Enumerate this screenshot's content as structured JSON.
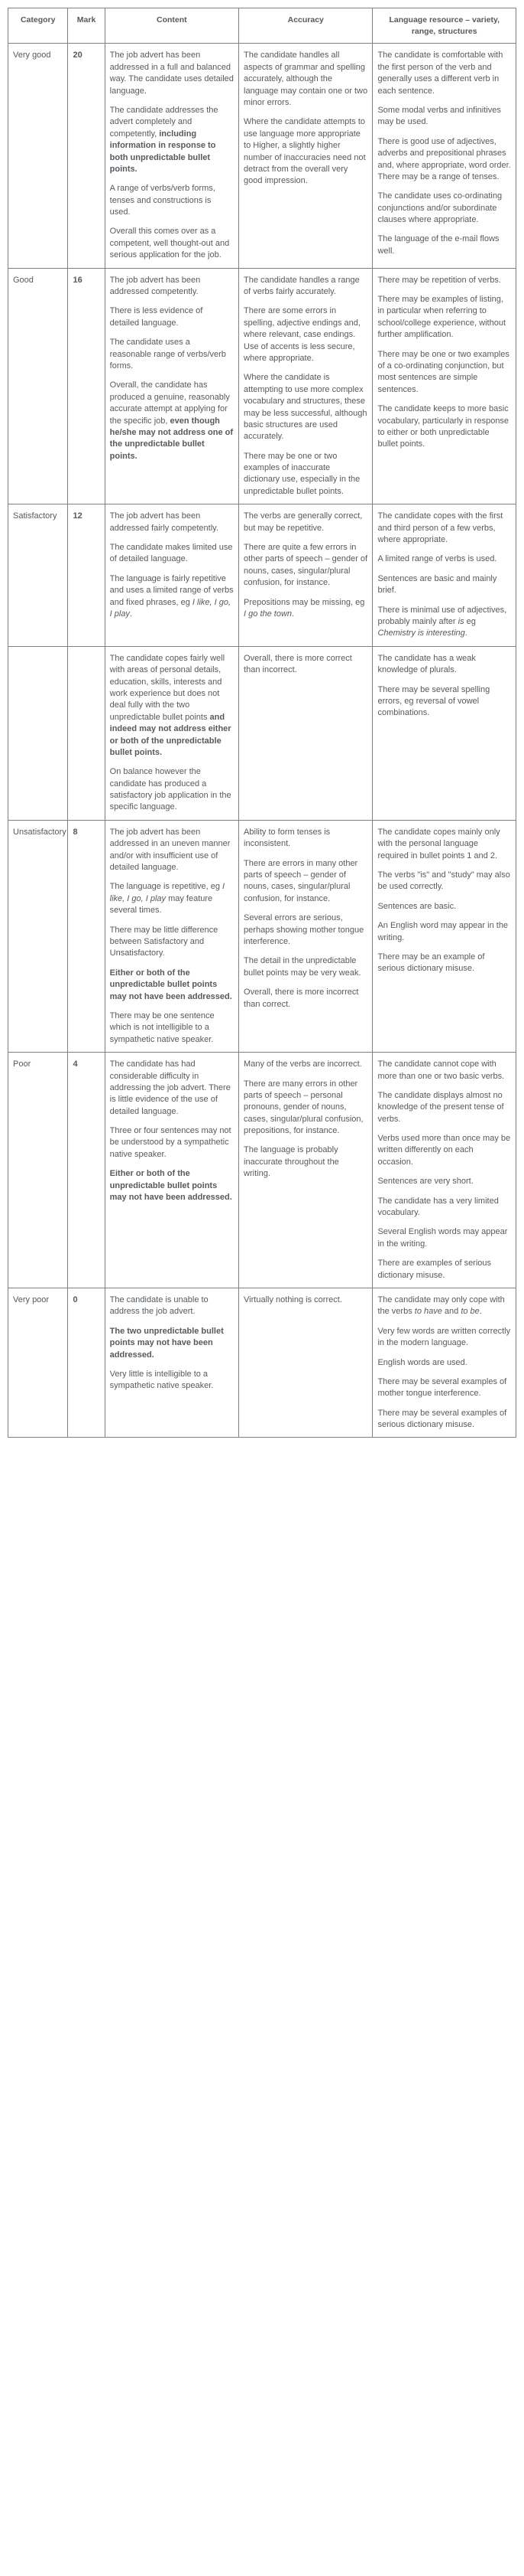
{
  "headers": {
    "category": "Category",
    "mark": "Mark",
    "content": "Content",
    "accuracy": "Accuracy",
    "language": "Language resource – variety, range, structures"
  },
  "rows": [
    {
      "category": "Very good",
      "mark": "20",
      "content": [
        {
          "text": "The job advert has been addressed in a full and balanced way.  The candidate uses detailed language."
        },
        {
          "html": "The candidate addresses the advert completely and competently, <span class='bold'>including information in response to both unpredictable bullet points.</span>"
        },
        {
          "text": "A range of verbs/verb forms, tenses and constructions is used."
        },
        {
          "text": "Overall this comes over as a competent, well thought-out and serious application for the job."
        }
      ],
      "accuracy": [
        {
          "text": "The candidate handles all aspects of grammar and spelling accurately, although the language may contain one or two minor errors."
        },
        {
          "text": "Where the candidate attempts to use language more appropriate to Higher, a slightly higher number of inaccuracies need not detract from the overall very good impression."
        }
      ],
      "language": [
        {
          "text": "The candidate is comfortable with the first person of the verb and generally uses a different verb in each sentence."
        },
        {
          "text": "Some modal verbs and infinitives may be used."
        },
        {
          "text": "There is good use of adjectives, adverbs and prepositional phrases and, where appropriate, word order.  There may be a range of tenses."
        },
        {
          "text": "The candidate uses co-ordinating conjunctions and/or subordinate clauses where appropriate."
        },
        {
          "text": "The language of the e-mail flows well."
        }
      ]
    },
    {
      "category": "Good",
      "mark": "16",
      "content": [
        {
          "text": "The job advert has been addressed competently."
        },
        {
          "text": "There is less evidence of detailed language."
        },
        {
          "text": "The candidate uses a reasonable range of verbs/verb forms."
        },
        {
          "html": "Overall, the candidate has produced a genuine, reasonably accurate attempt at applying for the specific job, <span class='bold'>even though he/she may not address one of the unpredictable bullet points.</span>"
        }
      ],
      "accuracy": [
        {
          "text": "The candidate handles a range of verbs fairly accurately."
        },
        {
          "text": "There are some errors in spelling, adjective endings and, where relevant, case endings.  Use of accents is less secure, where appropriate."
        },
        {
          "text": "Where the candidate is attempting to use more complex vocabulary and structures, these may be less successful, although basic structures are used accurately."
        },
        {
          "text": "There may be one or two examples of inaccurate dictionary use, especially in the unpredictable bullet points."
        }
      ],
      "language": [
        {
          "text": "There may be repetition of verbs."
        },
        {
          "text": "There may be examples of listing, in particular when referring to school/college experience, without further amplification."
        },
        {
          "text": "There may be one or two examples of a co-ordinating conjunction, but most sentences are simple sentences."
        },
        {
          "text": "The candidate keeps to more basic vocabulary, particularly in response to either or both unpredictable bullet points."
        }
      ]
    },
    {
      "category": "Satisfactory",
      "mark": "12",
      "content": [
        {
          "text": "The job advert has been addressed fairly competently."
        },
        {
          "text": "The candidate makes limited use of detailed language."
        },
        {
          "html": "The language is fairly repetitive and uses a limited range of verbs and fixed phrases, eg <span class='italic'>I like, I go, I play</span>."
        }
      ],
      "accuracy": [
        {
          "text": "The verbs are generally correct, but may be repetitive."
        },
        {
          "text": "There are quite a few errors in other parts of speech – gender of nouns, cases, singular/plural confusion, for instance."
        },
        {
          "html": "Prepositions may be missing, eg <span class='italic'>I go the town</span>."
        }
      ],
      "language": [
        {
          "text": "The candidate copes with the first and third person of a few verbs, where appropriate."
        },
        {
          "text": "A limited range of verbs is used."
        },
        {
          "text": "Sentences are basic and mainly brief."
        },
        {
          "html": "There is minimal use of adjectives, probably mainly after <span class='italic'>is</span> eg <span class='italic'>Chemistry is interesting</span>."
        }
      ]
    },
    {
      "category": "",
      "mark": "",
      "content": [
        {
          "html": "The candidate copes fairly well with areas of personal details, education, skills, interests and work experience but does not deal fully with the two unpredictable bullet points <span class='bold'>and indeed may not address either or both of the unpredictable bullet points.</span>"
        },
        {
          "text": "On balance however the candidate has produced a satisfactory job application in the specific language."
        }
      ],
      "accuracy": [
        {
          "text": "Overall, there is more correct than incorrect."
        }
      ],
      "language": [
        {
          "text": "The candidate has a weak knowledge of plurals."
        },
        {
          "text": "There may be several spelling errors, eg reversal of vowel combinations."
        }
      ]
    },
    {
      "category": "Unsatisfactory",
      "mark": "8",
      "content": [
        {
          "text": "The job advert has been addressed in an uneven manner and/or with insufficient use of detailed language."
        },
        {
          "html": "The language is repetitive, eg <span class='italic'>I like, I go, I play</span> may feature several times."
        },
        {
          "text": "There may be little difference between Satisfactory and Unsatisfactory."
        },
        {
          "html": "<span class='bold'>Either or both of the unpredictable bullet points may not have been addressed.</span>"
        },
        {
          "text": "There may be one sentence which is not intelligible to a sympathetic native speaker."
        }
      ],
      "accuracy": [
        {
          "text": "Ability to form tenses is inconsistent."
        },
        {
          "text": "There are errors in many other parts of speech – gender of nouns, cases, singular/plural confusion, for instance."
        },
        {
          "text": "Several errors are serious, perhaps showing mother tongue interference."
        },
        {
          "text": "The detail in the unpredictable bullet points may be very weak."
        },
        {
          "text": "Overall, there is more incorrect than correct."
        }
      ],
      "language": [
        {
          "text": "The candidate copes mainly only with the personal language required in bullet points 1 and 2."
        },
        {
          "html": "The verbs \"is\" and \"study\" may also be used correctly."
        },
        {
          "text": "Sentences are basic."
        },
        {
          "text": "An English word may appear in the writing."
        },
        {
          "text": "There may be an example of serious dictionary misuse."
        }
      ]
    },
    {
      "category": "Poor",
      "mark": "4",
      "content": [
        {
          "text": "The candidate has had considerable difficulty in addressing the job advert.  There is little evidence of the use of detailed language."
        },
        {
          "text": "Three or four sentences may not be understood by a sympathetic native speaker."
        },
        {
          "html": "<span class='bold'>Either or both of the unpredictable bullet points may not have been addressed.</span>"
        }
      ],
      "accuracy": [
        {
          "text": "Many of the verbs are incorrect."
        },
        {
          "text": "There are many errors in other parts of speech – personal pronouns, gender of nouns, cases, singular/plural confusion, prepositions, for instance."
        },
        {
          "text": "The language is probably inaccurate throughout the writing."
        }
      ],
      "language": [
        {
          "text": "The candidate cannot cope with more than one or two basic verbs."
        },
        {
          "text": "The candidate displays almost no knowledge of the present tense of verbs."
        },
        {
          "text": "Verbs used more than once may be written differently on each occasion."
        },
        {
          "text": "Sentences are very short."
        },
        {
          "text": "The candidate has a very limited vocabulary."
        },
        {
          "text": "Several English words may appear in the writing."
        },
        {
          "text": "There are examples of serious dictionary misuse."
        }
      ]
    },
    {
      "category": "Very poor",
      "mark": "0",
      "content": [
        {
          "text": "The candidate is unable to address the job advert."
        },
        {
          "html": "<span class='bold'>The two unpredictable bullet points may not have been addressed.</span>"
        },
        {
          "text": "Very little is intelligible to a sympathetic native speaker."
        }
      ],
      "accuracy": [
        {
          "text": "Virtually nothing is correct."
        }
      ],
      "language": [
        {
          "html": "The candidate may only cope with the verbs <span class='italic'>to have</span> and <span class='italic'>to be</span>."
        },
        {
          "text": "Very few words are written correctly in the modern language."
        },
        {
          "text": "English words are used."
        },
        {
          "text": "There may be several examples of mother tongue interference."
        },
        {
          "text": "There may be several examples of serious dictionary misuse."
        }
      ]
    }
  ]
}
